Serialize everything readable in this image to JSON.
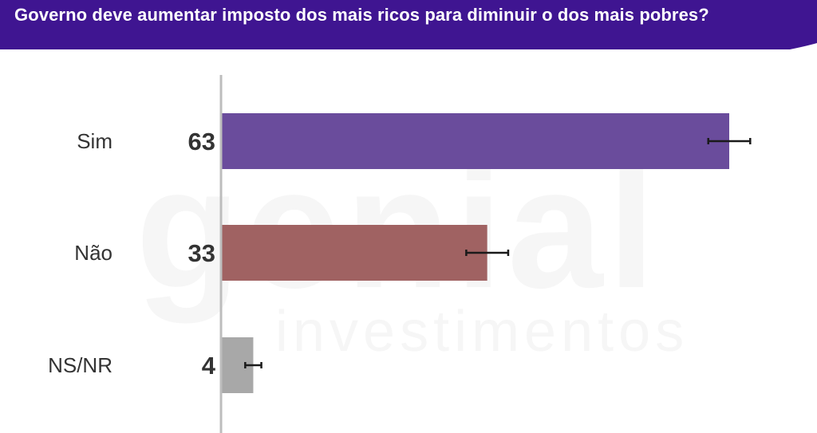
{
  "header": {
    "title": "Governo deve aumentar imposto dos mais ricos para diminuir o dos mais pobres?"
  },
  "watermark": {
    "brand": "genial",
    "sub": "investimentos"
  },
  "colors": {
    "header_bg": "#3f1591",
    "sim": "#6a4c9c",
    "nao": "#a06262",
    "nsnr": "#a8a8a8",
    "error_bar": "#1a1a1a",
    "axis": "#bdbdbd"
  },
  "chart_data": {
    "type": "bar",
    "orientation": "horizontal",
    "title": "Governo deve aumentar imposto dos mais ricos para diminuir o dos mais pobres?",
    "categories": [
      "Sim",
      "Não",
      "NS/NR"
    ],
    "values": [
      63,
      33,
      4
    ],
    "value_labels": [
      "63",
      "33",
      "4"
    ],
    "error_margin": [
      2.6,
      2.6,
      1.0
    ],
    "xlim": [
      0,
      70
    ],
    "grid": false,
    "legend": "none"
  }
}
